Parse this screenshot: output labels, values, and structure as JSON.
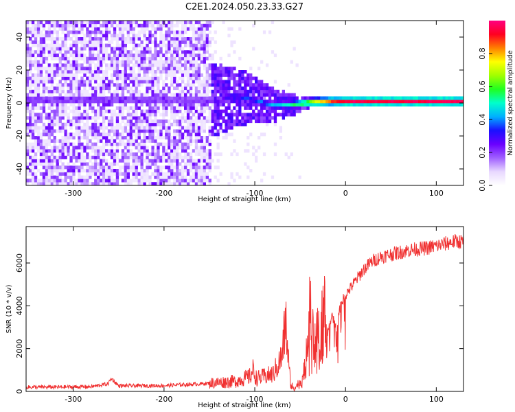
{
  "title": "C2E1.2024.050.23.33.G27",
  "colors": {
    "snr_line": "#f03030",
    "colormap": [
      "#ffffff",
      "#e8d8ff",
      "#a060ff",
      "#6a00ff",
      "#1a10ff",
      "#00b0ff",
      "#00ffcc",
      "#20ff20",
      "#a0ff00",
      "#ffff00",
      "#ff8000",
      "#ff0020",
      "#ff0080"
    ]
  },
  "chart_data": [
    {
      "type": "heatmap",
      "xlabel": "Height of straight line (km)",
      "ylabel": "Frequency (Hz)",
      "xlim": [
        -352,
        130
      ],
      "ylim": [
        -50,
        50
      ],
      "xticks": [
        -300,
        -200,
        -100,
        0,
        100
      ],
      "xtick_labels": [
        "-300",
        "-200",
        "-100",
        "0",
        "100"
      ],
      "yticks": [
        -40,
        -20,
        0,
        20,
        40
      ],
      "ytick_labels": [
        "-40",
        "-20",
        "0",
        "20",
        "40"
      ],
      "colorbar": {
        "label": "Normalized spectral amplitude",
        "range": [
          0,
          1
        ],
        "ticks": [
          0.0,
          0.2,
          0.4,
          0.6,
          0.8
        ],
        "tick_labels": [
          "0.0",
          "0.2",
          "0.4",
          "0.6",
          "0.8"
        ]
      },
      "features": {
        "noise_region_x": [
          -352,
          -150
        ],
        "noise_amplitude": 0.25,
        "transition_x": [
          -150,
          -40
        ],
        "ridge_frequency_points": [
          [
            -140,
            1.0
          ],
          [
            -120,
            3.0
          ],
          [
            -100,
            0.5
          ],
          [
            -80,
            -2.5
          ],
          [
            -60,
            -2.0
          ],
          [
            -40,
            -0.5
          ],
          [
            -20,
            0.0
          ],
          [
            0,
            0.0
          ],
          [
            130,
            0.0
          ]
        ],
        "ridge_amplitude_points": [
          [
            -140,
            0.25
          ],
          [
            -120,
            0.35
          ],
          [
            -100,
            0.4
          ],
          [
            -80,
            0.45
          ],
          [
            -60,
            0.55
          ],
          [
            -40,
            0.75
          ],
          [
            -20,
            0.85
          ],
          [
            0,
            0.95
          ],
          [
            130,
            0.95
          ]
        ]
      }
    },
    {
      "type": "line",
      "xlabel": "Height of straight line (km)",
      "ylabel": "SNR (10 * v/v)",
      "xlim": [
        -352,
        130
      ],
      "ylim": [
        0,
        7700
      ],
      "xticks": [
        -300,
        -200,
        -100,
        0,
        100
      ],
      "xtick_labels": [
        "-300",
        "-200",
        "-100",
        "0",
        "100"
      ],
      "yticks": [
        0,
        2000,
        4000,
        6000
      ],
      "ytick_labels": [
        "0",
        "2000",
        "4000",
        "6000"
      ],
      "series": [
        {
          "x": [
            -352,
            -320,
            -280,
            -262,
            -258,
            -250,
            -200,
            -160,
            -120,
            -105,
            -102,
            -98,
            -80,
            -70,
            -66,
            -64,
            -62,
            -60,
            -56,
            -50,
            -45,
            -42,
            -38,
            -35,
            -30,
            -25,
            -20,
            -15,
            -10,
            -5,
            0,
            5,
            10,
            15,
            20,
            25,
            30,
            40,
            50,
            60,
            70,
            80,
            90,
            95,
            100,
            105,
            110,
            115,
            120,
            130
          ],
          "y": [
            200,
            200,
            220,
            350,
            600,
            260,
            270,
            350,
            480,
            700,
            1000,
            600,
            800,
            1600,
            3300,
            2100,
            900,
            300,
            200,
            400,
            1000,
            2700,
            4300,
            2000,
            2800,
            4300,
            2700,
            3500,
            3000,
            4100,
            4500,
            4800,
            5100,
            5400,
            5700,
            5900,
            6100,
            6300,
            6400,
            6500,
            6600,
            6650,
            6700,
            6750,
            6800,
            6850,
            6900,
            6950,
            7000,
            7000
          ]
        }
      ]
    }
  ]
}
